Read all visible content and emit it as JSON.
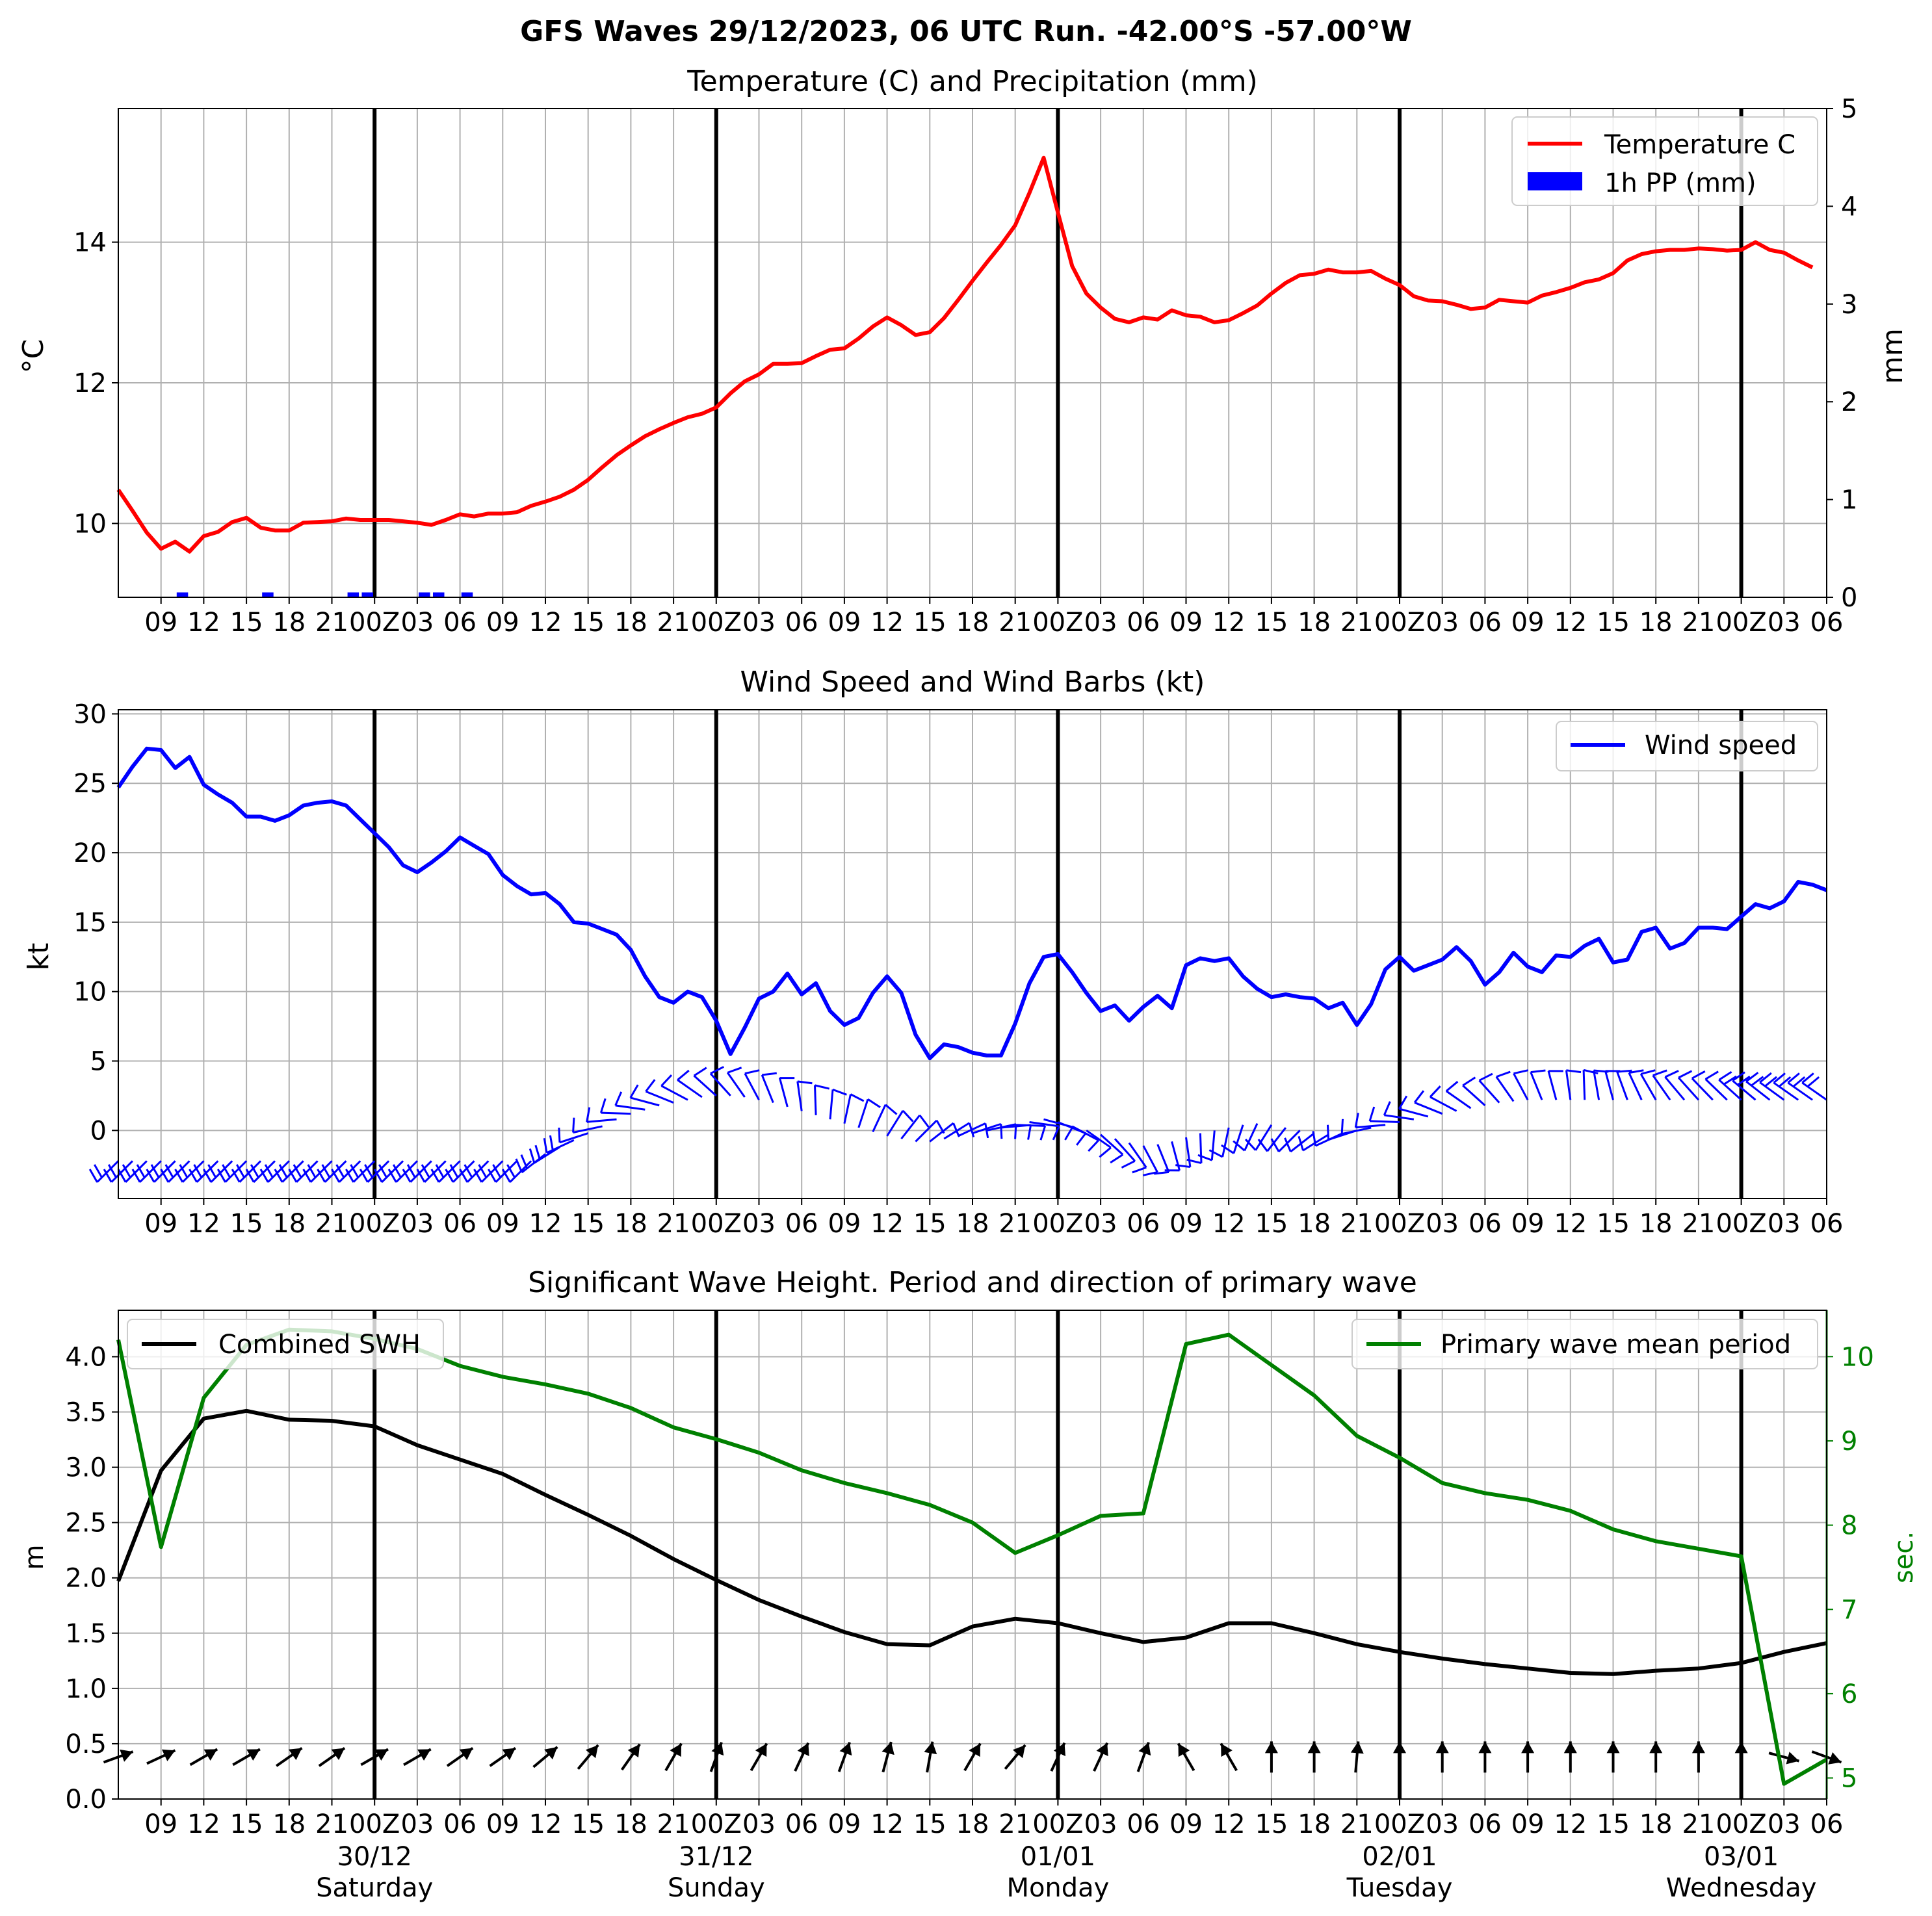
{
  "figure": {
    "suptitle": "GFS Waves 29/12/2023, 06 UTC Run. -42.00°S -57.00°W"
  },
  "colors": {
    "temperature": "#ff0000",
    "precip": "#0000ff",
    "wind": "#0000ff",
    "swh": "#000000",
    "period": "#008000",
    "grid": "#b0b0b0",
    "day_line": "#000000"
  },
  "time_axis": {
    "start_hour": 6,
    "end_hour": 126,
    "tick_labels": [
      "09",
      "12",
      "15",
      "18",
      "21",
      "00Z",
      "03",
      "06",
      "09",
      "12",
      "15",
      "18",
      "21",
      "00Z",
      "03",
      "06",
      "09",
      "12",
      "15",
      "18",
      "21",
      "00Z",
      "03",
      "06",
      "09",
      "12",
      "15",
      "18",
      "21",
      "00Z",
      "03",
      "06",
      "09",
      "12",
      "15",
      "18",
      "21",
      "00Z",
      "03",
      "06"
    ],
    "bottom_dates": [
      {
        "date": "30/12",
        "day": "Saturday"
      },
      {
        "date": "31/12",
        "day": "Sunday"
      },
      {
        "date": "01/01",
        "day": "Monday"
      },
      {
        "date": "02/01",
        "day": "Tuesday"
      },
      {
        "date": "03/01",
        "day": "Wednesday"
      }
    ]
  },
  "chart_data": [
    {
      "type": "line",
      "title": "Temperature (C) and Precipitation (mm)",
      "ylabel": "°C",
      "ylabel_right": "mm",
      "ylim": [
        8.95,
        15.9
      ],
      "ylim_right": [
        0,
        5
      ],
      "yticks": [
        10,
        12,
        14
      ],
      "yticks_right": [
        0,
        1,
        2,
        3,
        4,
        5
      ],
      "grid": true,
      "legend": "top-right",
      "series": [
        {
          "name": "Temperature C",
          "x_start": 6,
          "x_step": 1,
          "values": [
            10.48,
            10.18,
            9.87,
            9.64,
            9.74,
            9.6,
            9.82,
            9.88,
            10.02,
            10.08,
            9.94,
            9.9,
            9.9,
            10.01,
            10.02,
            10.03,
            10.07,
            10.05,
            10.05,
            10.05,
            10.03,
            10.01,
            9.98,
            10.05,
            10.13,
            10.1,
            10.14,
            10.14,
            10.16,
            10.25,
            10.31,
            10.38,
            10.48,
            10.62,
            10.8,
            10.97,
            11.11,
            11.24,
            11.34,
            11.43,
            11.51,
            11.56,
            11.65,
            11.85,
            12.02,
            12.12,
            12.27,
            12.27,
            12.28,
            12.38,
            12.47,
            12.49,
            12.63,
            12.8,
            12.93,
            12.82,
            12.68,
            12.72,
            12.92,
            13.18,
            13.45,
            13.71,
            13.96,
            14.24,
            14.7,
            15.2,
            14.42,
            13.66,
            13.27,
            13.07,
            12.91,
            12.86,
            12.93,
            12.9,
            13.03,
            12.96,
            12.94,
            12.86,
            12.89,
            12.99,
            13.1,
            13.27,
            13.42,
            13.53,
            13.55,
            13.61,
            13.57,
            13.57,
            13.59,
            13.48,
            13.39,
            13.23,
            13.17,
            13.16,
            13.11,
            13.05,
            13.07,
            13.18,
            13.16,
            13.14,
            13.24,
            13.29,
            13.35,
            13.43,
            13.47,
            13.56,
            13.74,
            13.83,
            13.87,
            13.89,
            13.89,
            13.91,
            13.9,
            13.88,
            13.89,
            14.0,
            13.89,
            13.85,
            13.74,
            13.64
          ]
        },
        {
          "name": "1h PP (mm)",
          "type": "bar",
          "axis": "right",
          "x": [
            10.5,
            16.5,
            22.5,
            23.5,
            27.5,
            28.5,
            30.5
          ],
          "values": [
            0.05,
            0.05,
            0.05,
            0.05,
            0.05,
            0.05,
            0.05
          ]
        }
      ]
    },
    {
      "type": "line",
      "title": "Wind Speed and Wind Barbs (kt)",
      "ylabel": "kt",
      "ylim": [
        -4.9,
        30.3
      ],
      "yticks": [
        0,
        5,
        10,
        15,
        20,
        25,
        30
      ],
      "grid": true,
      "legend": "top-right",
      "series": [
        {
          "name": "Wind speed",
          "x_start": 6,
          "x_step": 1,
          "values": [
            24.7,
            26.2,
            27.5,
            27.4,
            26.1,
            26.9,
            24.9,
            24.2,
            23.6,
            22.6,
            22.6,
            22.3,
            22.7,
            23.4,
            23.6,
            23.7,
            23.4,
            22.4,
            21.4,
            20.4,
            19.1,
            18.6,
            19.3,
            20.1,
            21.1,
            20.5,
            19.9,
            18.4,
            17.6,
            17.0,
            17.1,
            16.3,
            15.0,
            14.9,
            14.5,
            14.1,
            13.0,
            11.1,
            9.6,
            9.2,
            10.0,
            9.6,
            7.9,
            5.5,
            7.4,
            9.5,
            10.0,
            11.3,
            9.8,
            10.6,
            8.6,
            7.6,
            8.1,
            9.9,
            11.1,
            9.9,
            6.9,
            5.2,
            6.2,
            6.0,
            5.6,
            5.4,
            5.4,
            7.7,
            10.6,
            12.5,
            12.7,
            11.4,
            9.9,
            8.6,
            9.0,
            7.9,
            8.9,
            9.7,
            8.8,
            11.9,
            12.4,
            12.2,
            12.4,
            11.1,
            10.2,
            9.6,
            9.8,
            9.6,
            9.5,
            8.8,
            9.2,
            7.6,
            9.1,
            11.6,
            12.5,
            11.5,
            11.9,
            12.3,
            13.2,
            12.2,
            10.5,
            11.4,
            12.8,
            11.8,
            11.4,
            12.6,
            12.5,
            13.3,
            13.8,
            12.1,
            12.3,
            14.3,
            14.6,
            13.1,
            13.5,
            14.6,
            14.6,
            14.5,
            15.4,
            16.3,
            16.0,
            16.5,
            17.9,
            17.7,
            17.3
          ]
        }
      ],
      "barbs": {
        "x_start": 6,
        "x_step": 1,
        "direction_from_deg": [
          225,
          225,
          225,
          225,
          225,
          225,
          225,
          225,
          225,
          225,
          225,
          225,
          225,
          225,
          225,
          225,
          225,
          225,
          225,
          225,
          225,
          225,
          225,
          225,
          225,
          225,
          225,
          225,
          225,
          225,
          232,
          238,
          245,
          252,
          258,
          265,
          272,
          278,
          285,
          292,
          298,
          305,
          312,
          318,
          325,
          332,
          338,
          345,
          352,
          358,
          5,
          12,
          18,
          25,
          32,
          38,
          45,
          52,
          58,
          65,
          72,
          78,
          85,
          92,
          98,
          105,
          112,
          118,
          125,
          132,
          138,
          145,
          152,
          158,
          165,
          172,
          178,
          185,
          192,
          198,
          205,
          212,
          218,
          225,
          232,
          238,
          245,
          252,
          258,
          265,
          272,
          278,
          285,
          292,
          298,
          305,
          312,
          318,
          325,
          332,
          338,
          345,
          352,
          358,
          350,
          345,
          340,
          335,
          330,
          325,
          320,
          318,
          316,
          314,
          312,
          310,
          308,
          306,
          305,
          305,
          305
        ],
        "anchor_value": [
          -2.2,
          -2.2,
          -2.2,
          -2.2,
          -2.2,
          -2.2,
          -2.2,
          -2.2,
          -2.2,
          -2.2,
          -2.2,
          -2.2,
          -2.2,
          -2.2,
          -2.2,
          -2.2,
          -2.2,
          -2.2,
          -2.2,
          -2.2,
          -2.2,
          -2.2,
          -2.2,
          -2.2,
          -2.2,
          -2.2,
          -2.2,
          -2.2,
          -2.2,
          -2.2,
          -1.7,
          -1.2,
          -0.7,
          -0.2,
          0.3,
          0.8,
          1.2,
          1.5,
          1.8,
          2.0,
          2.2,
          2.4,
          2.5,
          2.5,
          2.4,
          2.2,
          2.0,
          1.7,
          1.4,
          1.1,
          0.8,
          0.5,
          0.2,
          -0.1,
          -0.4,
          -0.6,
          -0.8,
          -0.8,
          -0.6,
          -0.4,
          -0.2,
          0.0,
          0.2,
          0.4,
          0.6,
          0.8,
          0.6,
          0.3,
          0.0,
          -0.3,
          -0.6,
          -0.9,
          -1.1,
          -1.0,
          -0.8,
          -0.5,
          -0.2,
          0.0,
          0.2,
          0.4,
          0.5,
          0.4,
          0.2,
          0.0,
          -0.2,
          -0.3,
          -0.2,
          0.0,
          0.2,
          0.4,
          0.6,
          0.8,
          1.0,
          1.2,
          1.4,
          1.6,
          1.8,
          2.0,
          2.1,
          2.2,
          2.2,
          2.2,
          2.2,
          2.2,
          2.2,
          2.2,
          2.2,
          2.2,
          2.2,
          2.2,
          2.2,
          2.2,
          2.2,
          2.2,
          2.2,
          2.2,
          2.2,
          2.2,
          2.2,
          2.2,
          2.2
        ]
      }
    },
    {
      "type": "line",
      "title": "Significant Wave Height. Period and direction of primary wave",
      "ylabel": "m",
      "ylabel_right": "sec.",
      "ylim": [
        0.0,
        4.42
      ],
      "ylim_right": [
        4.75,
        10.55
      ],
      "yticks": [
        0.0,
        0.5,
        1.0,
        1.5,
        2.0,
        2.5,
        3.0,
        3.5,
        4.0
      ],
      "yticks_right": [
        5,
        6,
        7,
        8,
        9,
        10
      ],
      "grid": true,
      "series": [
        {
          "name": "Combined SWH",
          "legend": "top-left",
          "x": [
            6,
            9,
            12,
            15,
            18,
            21,
            24,
            27,
            30,
            33,
            36,
            39,
            42,
            45,
            48,
            51,
            54,
            57,
            60,
            63,
            66,
            69,
            72,
            75,
            78,
            81,
            84,
            87,
            90,
            93,
            96,
            99,
            102,
            105,
            108,
            111,
            114,
            117,
            120,
            123,
            126
          ],
          "values": [
            1.97,
            2.97,
            3.44,
            3.51,
            3.43,
            3.42,
            3.37,
            3.2,
            3.07,
            2.94,
            2.75,
            2.57,
            2.38,
            2.17,
            1.98,
            1.8,
            1.65,
            1.51,
            1.4,
            1.39,
            1.56,
            1.63,
            1.59,
            1.5,
            1.42,
            1.46,
            1.59,
            1.59,
            1.5,
            1.4,
            1.33,
            1.27,
            1.22,
            1.18,
            1.14,
            1.13,
            1.16,
            1.18,
            1.23,
            1.33,
            1.41
          ]
        },
        {
          "name": "Primary wave mean period",
          "axis": "right",
          "legend": "top-right",
          "x": [
            6,
            9,
            12,
            15,
            18,
            21,
            24,
            27,
            30,
            33,
            36,
            39,
            42,
            45,
            48,
            51,
            54,
            57,
            60,
            63,
            66,
            69,
            72,
            75,
            78,
            81,
            84,
            87,
            90,
            93,
            96,
            99,
            102,
            105,
            108,
            111,
            114,
            117,
            120,
            123,
            126
          ],
          "values": [
            10.2,
            7.74,
            9.51,
            10.14,
            10.32,
            10.3,
            10.21,
            10.09,
            9.89,
            9.76,
            9.67,
            9.56,
            9.39,
            9.16,
            9.02,
            8.86,
            8.65,
            8.5,
            8.38,
            8.24,
            8.03,
            7.67,
            7.88,
            8.11,
            8.14,
            10.15,
            10.26,
            9.9,
            9.54,
            9.06,
            8.8,
            8.5,
            8.38,
            8.3,
            8.17,
            7.95,
            7.81,
            7.72,
            7.63,
            4.93,
            5.22
          ]
        }
      ],
      "direction_arrows": {
        "x": [
          6,
          9,
          12,
          15,
          18,
          21,
          24,
          27,
          30,
          33,
          36,
          39,
          42,
          45,
          48,
          51,
          54,
          57,
          60,
          63,
          66,
          69,
          72,
          75,
          78,
          81,
          84,
          87,
          90,
          93,
          96,
          99,
          102,
          105,
          108,
          111,
          114,
          117,
          120,
          123,
          126
        ],
        "direction_deg": [
          250,
          245,
          240,
          240,
          235,
          235,
          240,
          240,
          235,
          235,
          230,
          220,
          215,
          210,
          200,
          210,
          205,
          200,
          195,
          190,
          210,
          220,
          205,
          205,
          200,
          150,
          150,
          180,
          180,
          185,
          180,
          180,
          180,
          180,
          180,
          180,
          180,
          180,
          180,
          285,
          290
        ]
      }
    }
  ]
}
